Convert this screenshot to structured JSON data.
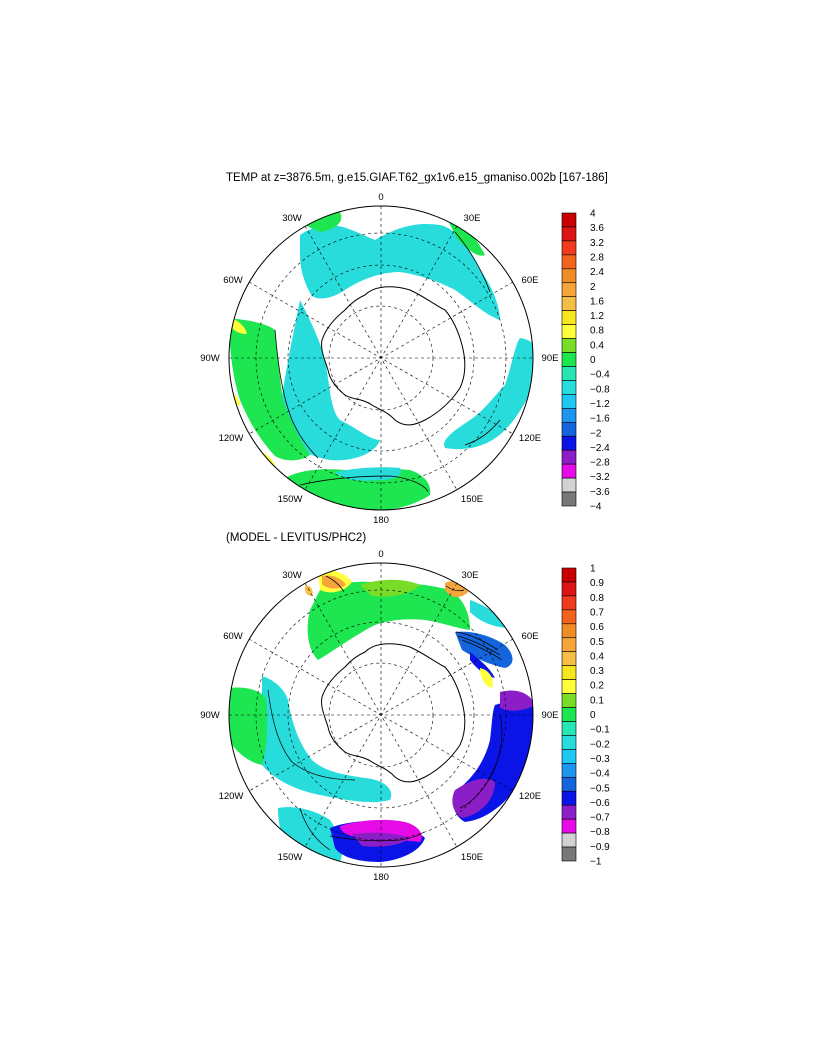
{
  "panels": [
    {
      "id": "top",
      "title": "TEMP at z=3876.5m, g.e15.GIAF.T62_gx1v6.e15_gmaniso.002b [167-186]",
      "lon_labels": [
        "0",
        "30E",
        "60E",
        "90E",
        "120E",
        "150E",
        "180",
        "150W",
        "120W",
        "90W",
        "60W",
        "30W"
      ],
      "colorbar": {
        "labels": [
          "4",
          "3.6",
          "3.2",
          "2.8",
          "2.4",
          "2",
          "1.6",
          "1.2",
          "0.8",
          "0.4",
          "0",
          "−0.4",
          "−0.8",
          "−1.2",
          "−1.6",
          "−2",
          "−2.4",
          "−2.8",
          "−3.2",
          "−3.6",
          "−4"
        ],
        "colors": [
          "#c80000",
          "#dc1414",
          "#f03c1e",
          "#f0641e",
          "#f08c28",
          "#f5a53c",
          "#f5be46",
          "#f5e61e",
          "#ffff3c",
          "#78dc28",
          "#1ee650",
          "#28e6b4",
          "#28dcdc",
          "#1ec8f0",
          "#1e96f0",
          "#1464dc",
          "#0a14e6",
          "#8c1ec8",
          "#e60ae6",
          "#d2d2d2",
          "#787878"
        ]
      }
    },
    {
      "id": "bottom",
      "title": "(MODEL - LEVITUS/PHC2)",
      "lon_labels": [
        "0",
        "30E",
        "60E",
        "90E",
        "120E",
        "150E",
        "180",
        "150W",
        "120W",
        "90W",
        "60W",
        "30W"
      ],
      "colorbar": {
        "labels": [
          "1",
          "0.9",
          "0.8",
          "0.7",
          "0.6",
          "0.5",
          "0.4",
          "0.3",
          "0.2",
          "0.1",
          "0",
          "−0.1",
          "−0.2",
          "−0.3",
          "−0.4",
          "−0.5",
          "−0.6",
          "−0.7",
          "−0.8",
          "−0.9",
          "−1"
        ],
        "colors": [
          "#c80000",
          "#dc1414",
          "#f03c1e",
          "#f0641e",
          "#f08c28",
          "#f5a53c",
          "#f5be46",
          "#f5e61e",
          "#ffff3c",
          "#78dc28",
          "#1ee650",
          "#28e6b4",
          "#28dcdc",
          "#1ec8f0",
          "#1e96f0",
          "#1464dc",
          "#0a14e6",
          "#8c1ec8",
          "#e60ae6",
          "#d2d2d2",
          "#787878"
        ]
      }
    }
  ],
  "colors": {
    "coast": "#000000",
    "grid": "#000000",
    "ocean_fill": "#ffffff"
  }
}
